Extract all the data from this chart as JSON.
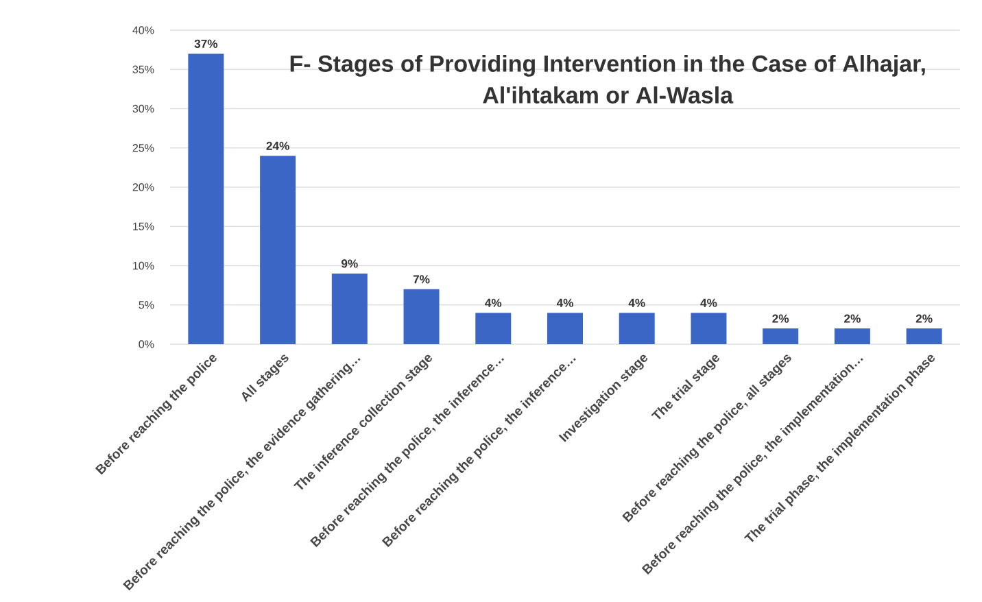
{
  "chart_data": {
    "type": "bar",
    "title": "F- Stages of Providing Intervention in the Case of Alhajar, Al'ihtakam or Al-Wasla",
    "categories": [
      "Before reaching the police",
      "All stages",
      "Before reaching the police, the evidence gathering…",
      "The inference collection stage",
      "Before reaching the police, the inference…",
      "Before reaching the police, the inference…",
      "Investigation stage",
      "The trial stage",
      "Before reaching the police, all stages",
      "Before reaching the police, the implementation…",
      "The trial phase, the implementation phase"
    ],
    "values": [
      37,
      24,
      9,
      7,
      4,
      4,
      4,
      4,
      2,
      2,
      2
    ],
    "value_labels": [
      "37%",
      "24%",
      "9%",
      "7%",
      "4%",
      "4%",
      "4%",
      "4%",
      "2%",
      "2%",
      "2%"
    ],
    "color": "#3c66c5",
    "ylim": [
      0,
      40
    ],
    "yticks": [
      {
        "value": 0,
        "label": "0%"
      },
      {
        "value": 5,
        "label": "5%"
      },
      {
        "value": 10,
        "label": "10%"
      },
      {
        "value": 15,
        "label": "15%"
      },
      {
        "value": 20,
        "label": "20%"
      },
      {
        "value": 25,
        "label": "25%"
      },
      {
        "value": 30,
        "label": "30%"
      },
      {
        "value": 35,
        "label": "35%"
      },
      {
        "value": 40,
        "label": "40%"
      }
    ],
    "grid": "y"
  }
}
